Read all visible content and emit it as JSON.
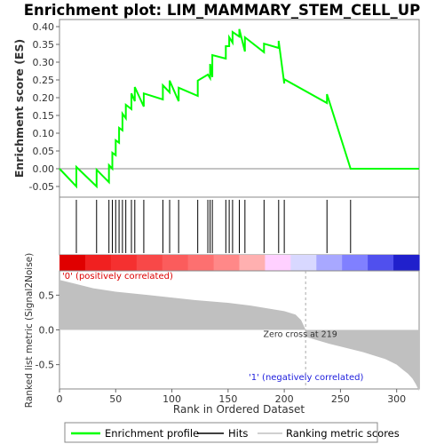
{
  "chart_data": {
    "type": "line",
    "title": "Enrichment plot: LIM_MAMMARY_STEM_CELL_UP",
    "es_panel": {
      "ylabel": "Enrichment score (ES)",
      "ylim": [
        -0.08,
        0.42
      ],
      "yticks": [
        "0.40",
        "0.35",
        "0.30",
        "0.25",
        "0.20",
        "0.15",
        "0.10",
        "0.05",
        "0.00",
        "-0.05"
      ],
      "ytick_values": [
        0.4,
        0.35,
        0.3,
        0.25,
        0.2,
        0.15,
        0.1,
        0.05,
        0.0,
        -0.05
      ],
      "series_name": "Enrichment profile",
      "series_color": "#00ff00",
      "x": [
        0,
        15,
        15,
        33,
        33,
        44,
        44,
        47,
        47,
        50,
        50,
        53,
        53,
        56,
        56,
        59,
        59,
        64,
        64,
        67,
        67,
        75,
        75,
        92,
        92,
        98,
        98,
        106,
        106,
        123,
        123,
        132,
        132,
        134,
        134,
        136,
        136,
        148,
        148,
        151,
        151,
        154,
        154,
        160,
        160,
        165,
        165,
        182,
        182,
        195,
        195,
        200,
        200,
        238,
        238,
        259,
        259,
        320
      ],
      "y": [
        0.0,
        -0.05,
        0.005,
        -0.05,
        -0.003,
        -0.038,
        0.01,
        0.0,
        0.045,
        0.038,
        0.08,
        0.073,
        0.115,
        0.108,
        0.155,
        0.142,
        0.18,
        0.168,
        0.212,
        0.19,
        0.23,
        0.175,
        0.212,
        0.195,
        0.235,
        0.215,
        0.248,
        0.19,
        0.228,
        0.205,
        0.248,
        0.265,
        0.265,
        0.255,
        0.295,
        0.258,
        0.32,
        0.31,
        0.345,
        0.345,
        0.37,
        0.355,
        0.385,
        0.372,
        0.393,
        0.33,
        0.37,
        0.328,
        0.352,
        0.34,
        0.36,
        0.24,
        0.252,
        0.185,
        0.21,
        0.0,
        0.0,
        0.0
      ]
    },
    "hits_panel": {
      "label": "Hits",
      "hit_ranks": [
        15,
        33,
        44,
        47,
        50,
        53,
        56,
        59,
        64,
        67,
        75,
        92,
        98,
        106,
        123,
        132,
        134,
        136,
        148,
        151,
        154,
        160,
        165,
        182,
        195,
        200,
        238,
        259
      ],
      "color_band": [
        "#e00000",
        "#f02020",
        "#f53030",
        "#f84848",
        "#fb5c5c",
        "#fd7070",
        "#ff8888",
        "#ffb0b0",
        "#ffd0ff",
        "#d8d8ff",
        "#a8a8ff",
        "#8080ff",
        "#5050ee",
        "#2020cc"
      ]
    },
    "metric_panel": {
      "ylabel": "Ranked list metric (Signal2Noise)",
      "ylim": [
        -0.85,
        0.85
      ],
      "yticks": [
        "0.5",
        "0.0",
        "-0.5"
      ],
      "ytick_values": [
        0.5,
        0.0,
        -0.5
      ],
      "series_name": "Ranking metric scores",
      "fill_color": "#c0c0c0",
      "x": [
        0,
        5,
        15,
        30,
        50,
        80,
        120,
        150,
        170,
        185,
        200,
        210,
        215,
        219,
        219,
        240,
        270,
        290,
        300,
        306,
        310,
        314,
        317,
        320
      ],
      "y": [
        0.72,
        0.7,
        0.66,
        0.6,
        0.55,
        0.5,
        0.43,
        0.39,
        0.35,
        0.31,
        0.27,
        0.22,
        0.14,
        0.0,
        -0.1,
        -0.2,
        -0.32,
        -0.42,
        -0.5,
        -0.58,
        -0.63,
        -0.7,
        -0.78,
        -0.88
      ],
      "label_pos": "'0' (positively correlated)",
      "label_neg": "'1' (negatively correlated)",
      "zero_cross": "Zero cross at 219",
      "zero_cross_rank": 219
    },
    "xlabel": "Rank in Ordered Dataset",
    "xlim": [
      0,
      320
    ],
    "xticks": [
      "0",
      "50",
      "100",
      "150",
      "200",
      "250",
      "300"
    ],
    "xtick_values": [
      0,
      50,
      100,
      150,
      200,
      250,
      300
    ],
    "legend": {
      "items": [
        "Enrichment profile",
        "Hits",
        "Ranking metric scores"
      ],
      "position": "bottom"
    }
  }
}
